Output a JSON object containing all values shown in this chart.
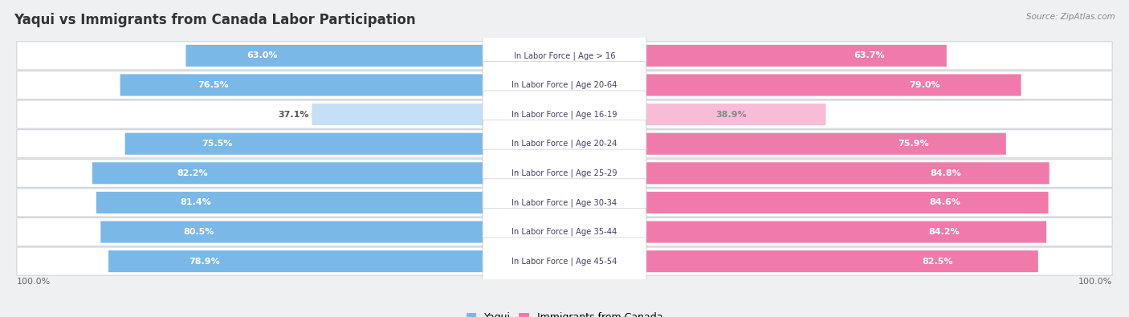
{
  "title": "Yaqui vs Immigrants from Canada Labor Participation",
  "source": "Source: ZipAtlas.com",
  "categories": [
    "In Labor Force | Age > 16",
    "In Labor Force | Age 20-64",
    "In Labor Force | Age 16-19",
    "In Labor Force | Age 20-24",
    "In Labor Force | Age 25-29",
    "In Labor Force | Age 30-34",
    "In Labor Force | Age 35-44",
    "In Labor Force | Age 45-54"
  ],
  "yaqui_values": [
    63.0,
    76.5,
    37.1,
    75.5,
    82.2,
    81.4,
    80.5,
    78.9
  ],
  "canada_values": [
    63.7,
    79.0,
    38.9,
    75.9,
    84.8,
    84.6,
    84.2,
    82.5
  ],
  "yaqui_color": "#7ab8e8",
  "canada_color": "#f07baa",
  "yaqui_light_color": "#c5dff4",
  "canada_light_color": "#f9bcd6",
  "background_color": "#eef0f2",
  "row_bg_color": "#ffffff",
  "title_fontsize": 12,
  "legend_yaqui": "Yaqui",
  "legend_canada": "Immigrants from Canada"
}
